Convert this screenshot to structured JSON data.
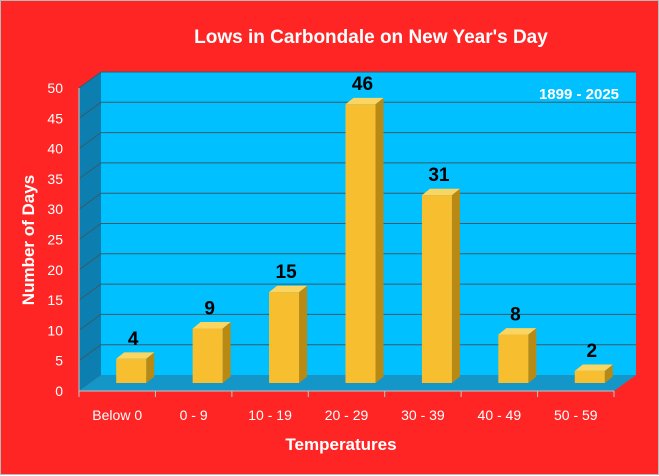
{
  "chart_data": {
    "type": "bar",
    "title": "Lows in Carbondale on New Year's Day",
    "xlabel": "Temperatures",
    "ylabel": "Number of Days",
    "annotation": "1899 - 2025",
    "categories": [
      "Below 0",
      "0 - 9",
      "10 - 19",
      "20 - 29",
      "30 - 39",
      "40 - 49",
      "50 - 59"
    ],
    "values": [
      4,
      9,
      15,
      46,
      31,
      8,
      2
    ],
    "ylim": [
      0,
      50
    ],
    "yticks": [
      0,
      5,
      10,
      15,
      20,
      25,
      30,
      35,
      40,
      45,
      50
    ],
    "grid": true,
    "legend": "none",
    "style": "3d-column",
    "colors": {
      "background": "#ff2525",
      "plot_area": "#00c0ff",
      "side_wall": "#0c7fb0",
      "floor": "#1596c8",
      "bar_front": "#f7bf30",
      "bar_top": "#fbd561",
      "bar_side": "#b98a13",
      "gridline": "#3a5a66",
      "text": "#ffffff",
      "data_label": "#000000"
    }
  }
}
